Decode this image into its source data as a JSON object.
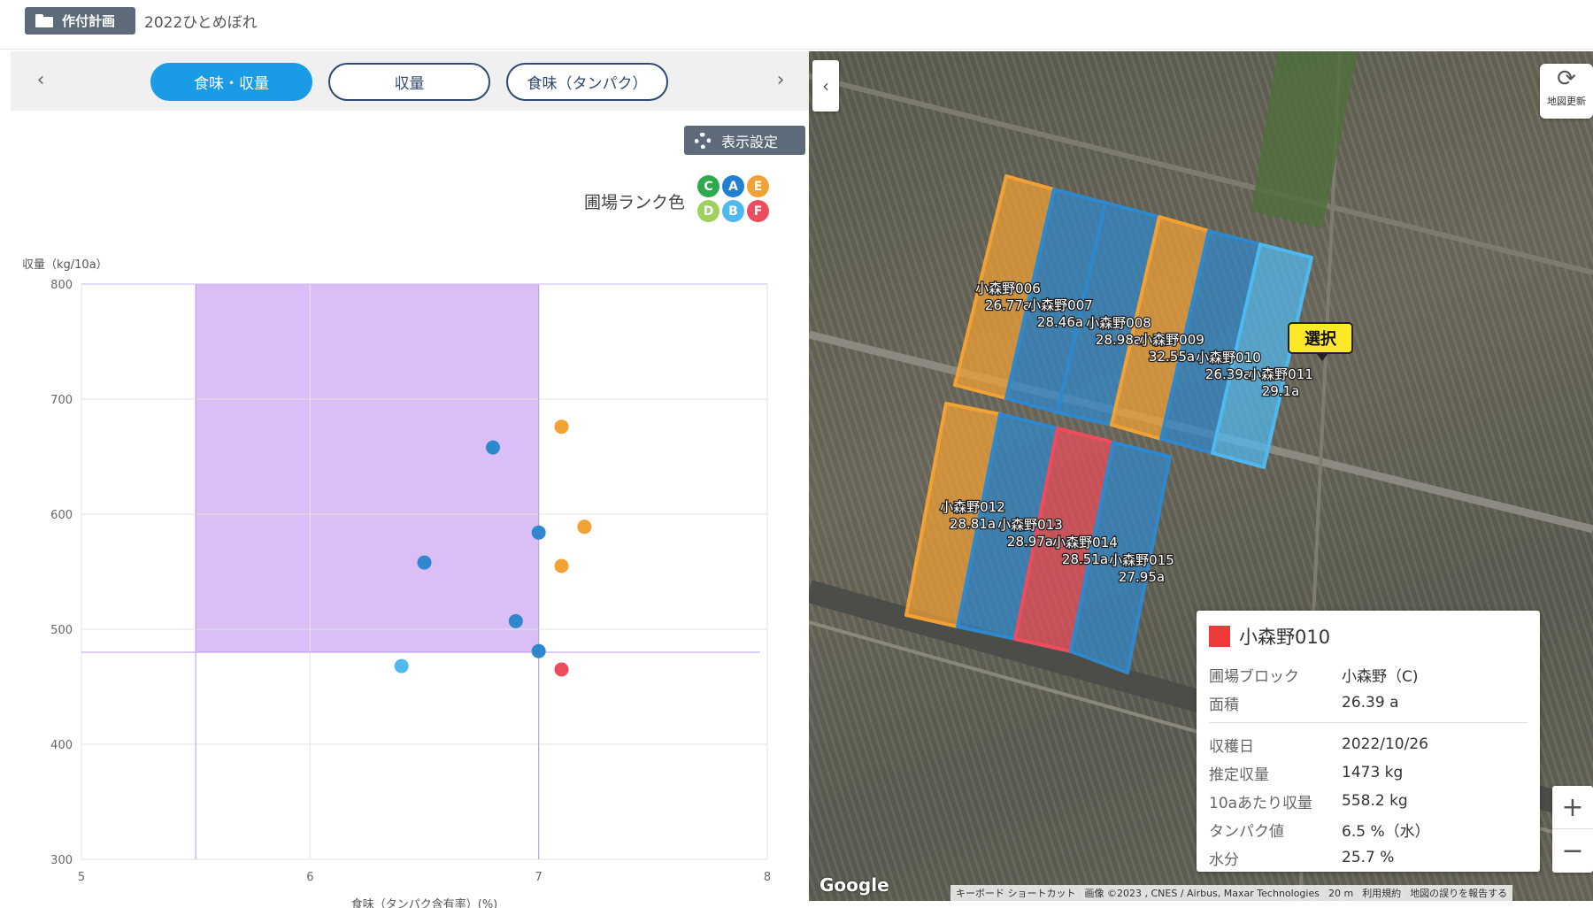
{
  "header": {
    "plan_button": "作付計画",
    "crop_name": "2022ひとめぼれ"
  },
  "tabs": [
    {
      "label": "食味・収量",
      "active": true
    },
    {
      "label": "収量",
      "active": false
    },
    {
      "label": "食味（タンパク）",
      "active": false
    }
  ],
  "settings_label": "表示設定",
  "legend": {
    "title": "圃場ランク色",
    "ranks": [
      {
        "label": "C",
        "color": "#2daa4f"
      },
      {
        "label": "A",
        "color": "#1f7fd0"
      },
      {
        "label": "E",
        "color": "#f2a134"
      },
      {
        "label": "D",
        "color": "#9fd15c"
      },
      {
        "label": "B",
        "color": "#4fb8ee"
      },
      {
        "label": "F",
        "color": "#ec4c5c"
      }
    ]
  },
  "chart_data": {
    "type": "scatter",
    "title": "",
    "xlabel": "食味（タンパク含有率）(%)",
    "ylabel": "収量（kg/10a）",
    "xlim": [
      5,
      8
    ],
    "ylim": [
      300,
      800
    ],
    "xticks": [
      "5",
      "6",
      "7",
      "8"
    ],
    "yticks": [
      "300",
      "400",
      "500",
      "600",
      "700",
      "800"
    ],
    "target_region": {
      "x": [
        5.5,
        7.0
      ],
      "y": [
        480,
        800
      ],
      "color": "#d9bff5"
    },
    "grid": true,
    "points": [
      {
        "x": 6.8,
        "y": 658,
        "color": "#2f88cc"
      },
      {
        "x": 7.1,
        "y": 676,
        "color": "#f2a134"
      },
      {
        "x": 7.2,
        "y": 589,
        "color": "#f2a134"
      },
      {
        "x": 7.0,
        "y": 584,
        "color": "#2f88cc"
      },
      {
        "x": 6.5,
        "y": 558,
        "color": "#2f88cc"
      },
      {
        "x": 7.1,
        "y": 555,
        "color": "#f2a134"
      },
      {
        "x": 6.9,
        "y": 507,
        "color": "#2f88cc"
      },
      {
        "x": 7.0,
        "y": 481,
        "color": "#2f88cc"
      },
      {
        "x": 6.4,
        "y": 468,
        "color": "#4fb8ee"
      },
      {
        "x": 7.1,
        "y": 465,
        "color": "#ec4c5c"
      }
    ]
  },
  "map": {
    "refresh_label": "地図更新",
    "selected_pin": "選択",
    "fields": [
      {
        "name": "小森野006",
        "area": "26.77a",
        "color": "#f2a134"
      },
      {
        "name": "小森野007",
        "area": "28.46a",
        "color": "#2f88cc"
      },
      {
        "name": "小森野008",
        "area": "28.98a",
        "color": "#2f88cc"
      },
      {
        "name": "小森野009",
        "area": "32.55a",
        "color": "#f2a134"
      },
      {
        "name": "小森野010",
        "area": "26.39a",
        "color": "#2f88cc"
      },
      {
        "name": "小森野011",
        "area": "29.1a",
        "color": "#4fb8ee"
      },
      {
        "name": "小森野012",
        "area": "28.81a",
        "color": "#f2a134"
      },
      {
        "name": "小森野013",
        "area": "28.97a",
        "color": "#2f88cc"
      },
      {
        "name": "小森野014",
        "area": "28.51a",
        "color": "#ec4c5c"
      },
      {
        "name": "小森野015",
        "area": "27.95a",
        "color": "#2f88cc"
      }
    ],
    "info": {
      "title": "小森野010",
      "rows_a": [
        {
          "k": "圃場ブロック",
          "v": "小森野（C)"
        },
        {
          "k": "面積",
          "v": "26.39 a"
        }
      ],
      "rows_b": [
        {
          "k": "収穫日",
          "v": "2022/10/26"
        },
        {
          "k": "推定収量",
          "v": "1473 kg"
        },
        {
          "k": "10aあたり収量",
          "v": "558.2 kg"
        },
        {
          "k": "タンパク値",
          "v": "6.5 %（水）"
        },
        {
          "k": "水分",
          "v": "25.7 %"
        }
      ]
    },
    "google_logo": "Google",
    "attribution": [
      "キーボード ショートカット",
      "画像 ©2023 , CNES / Airbus, Maxar Technologies",
      "20 m",
      "利用規約",
      "地図の誤りを報告する"
    ]
  }
}
